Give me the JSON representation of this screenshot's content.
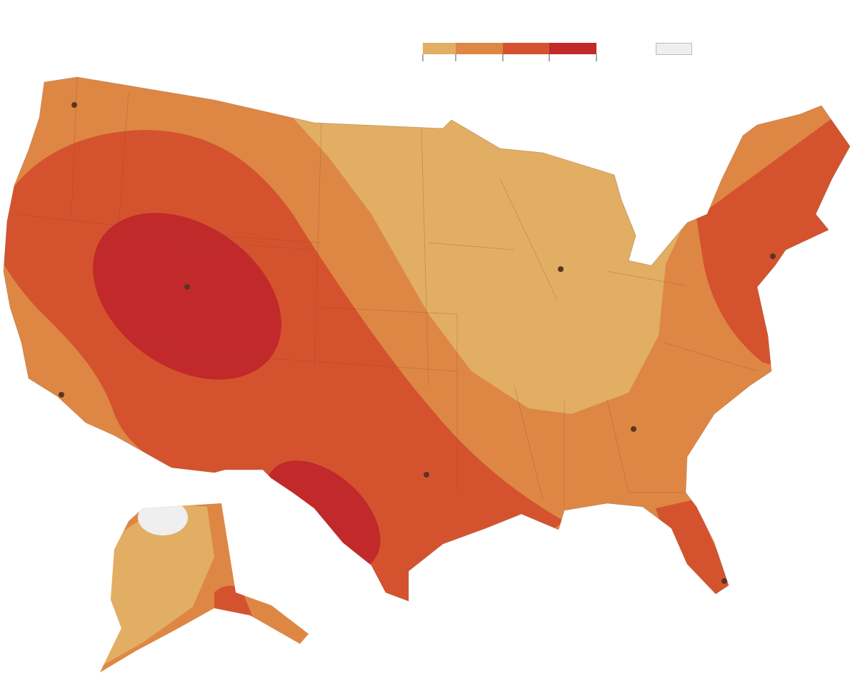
{
  "legend": {
    "colors": [
      "#e2ae63",
      "#de8744",
      "#d4532e",
      "#c1292a"
    ],
    "no_data_color": "#efefef"
  }
}
